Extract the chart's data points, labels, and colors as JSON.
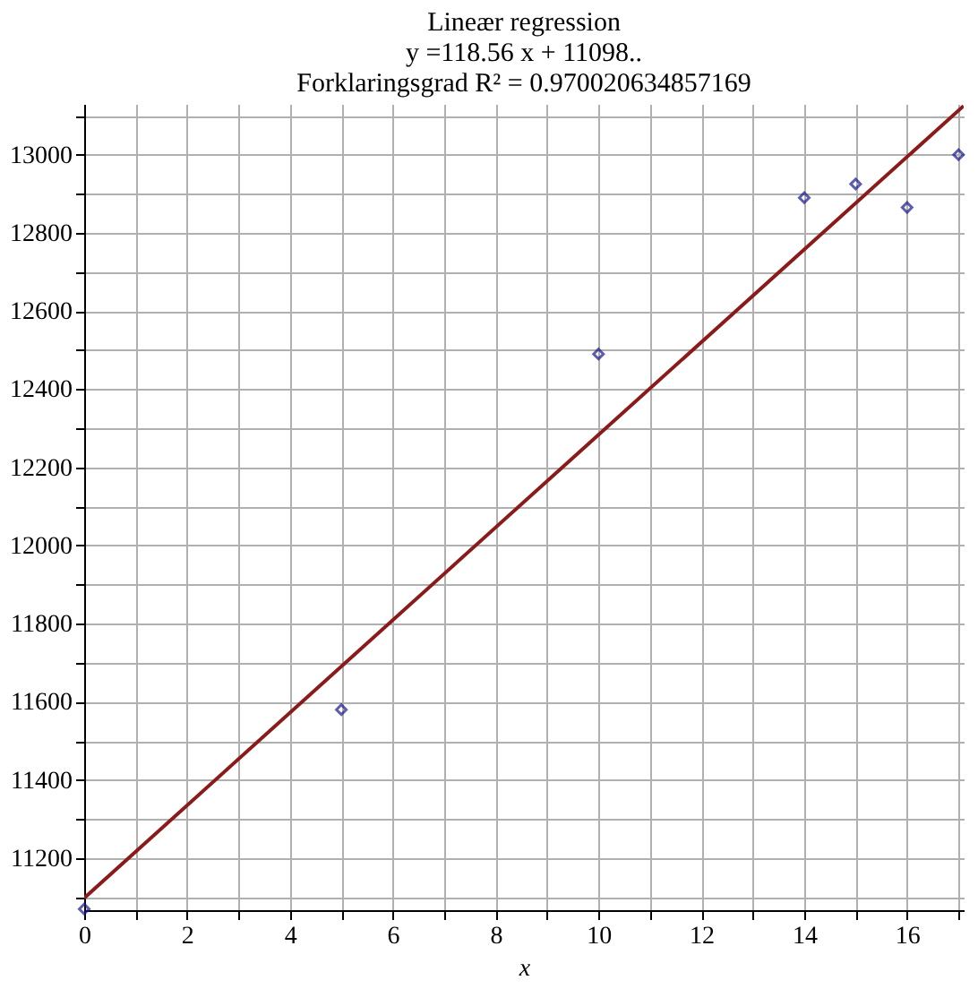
{
  "chart_data": {
    "type": "scatter",
    "title": [
      "Lineær regression",
      "y =118.56 x + 11098..",
      "Forklaringsgrad R² = 0.970020634857169"
    ],
    "xlabel": "x",
    "xlim": [
      0,
      17.1
    ],
    "ylim": [
      11067,
      13130
    ],
    "xticks": [
      0,
      {
        "value": 1,
        "label": null
      },
      2,
      {
        "value": 3,
        "label": null
      },
      4,
      {
        "value": 5,
        "label": null
      },
      6,
      {
        "value": 7,
        "label": null
      },
      8,
      {
        "value": 9,
        "label": null
      },
      10,
      {
        "value": 11,
        "label": null
      },
      12,
      {
        "value": 13,
        "label": null
      },
      14,
      {
        "value": 15,
        "label": null
      },
      16,
      {
        "value": 17,
        "label": null
      }
    ],
    "yticks": [
      {
        "value": 11100,
        "label": null
      },
      11200,
      {
        "value": 11300,
        "label": null
      },
      11400,
      {
        "value": 11500,
        "label": null
      },
      11600,
      {
        "value": 11700,
        "label": null
      },
      11800,
      {
        "value": 11900,
        "label": null
      },
      12000,
      {
        "value": 12100,
        "label": null
      },
      12200,
      {
        "value": 12300,
        "label": null
      },
      12400,
      {
        "value": 12500,
        "label": null
      },
      12600,
      {
        "value": 12700,
        "label": null
      },
      12800,
      {
        "value": 12900,
        "label": null
      },
      13000,
      {
        "value": 13100,
        "label": null
      }
    ],
    "grid": true,
    "series": [
      {
        "type": "line",
        "color": "#8b1a1a",
        "x": [
          0,
          17.1
        ],
        "values": [
          11098,
          13125
        ],
        "line_style": "solid",
        "marker": "none"
      },
      {
        "color": "#1a1a8c",
        "marker": "diamond",
        "x": [
          0,
          5,
          10,
          14,
          15,
          16,
          17
        ],
        "values": [
          11070,
          11580,
          12490,
          12890,
          12925,
          12865,
          13000
        ]
      }
    ]
  }
}
